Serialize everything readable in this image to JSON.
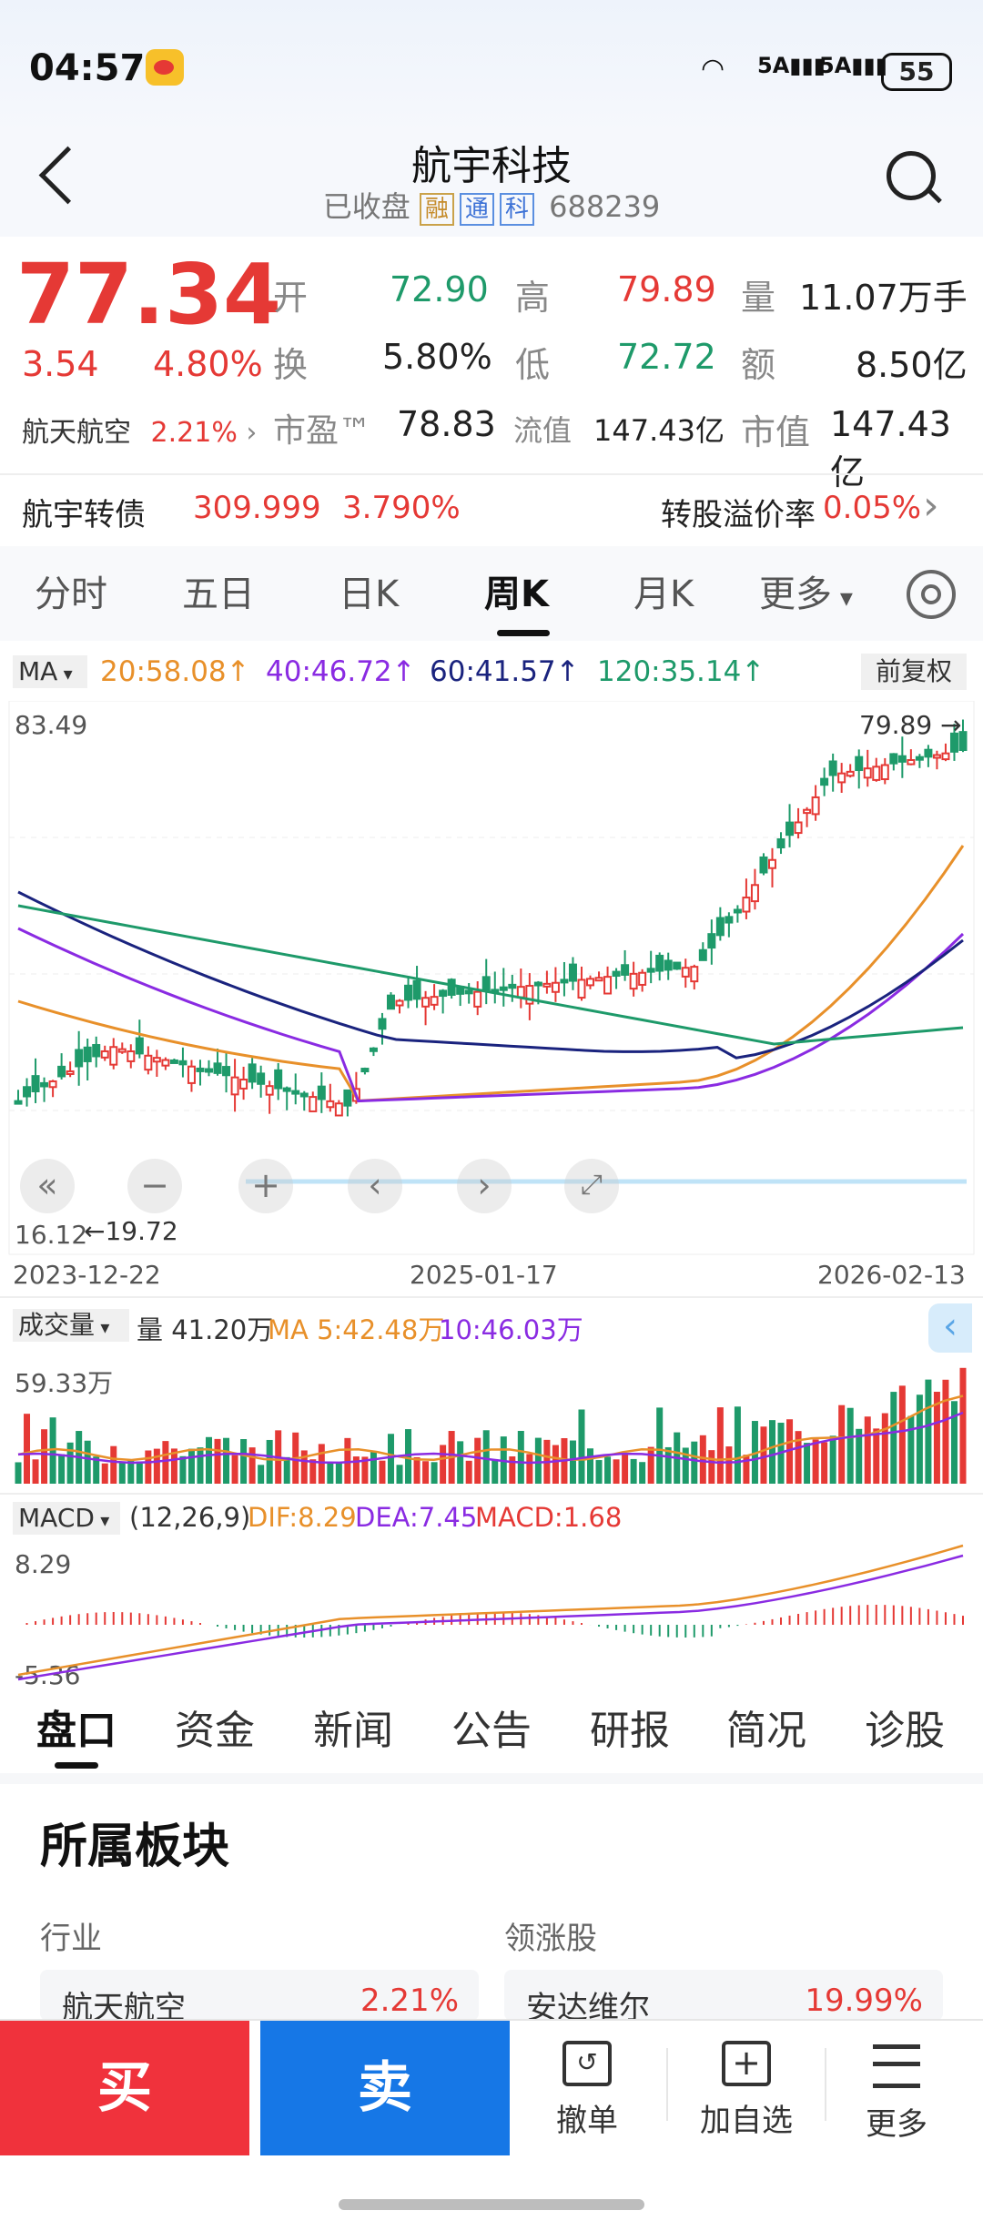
{
  "status": {
    "time": "04:57",
    "battery": "55",
    "net1": "5A",
    "net2": "5A"
  },
  "header": {
    "title": "航宇科技",
    "status": "已收盘",
    "chips": [
      "融",
      "通",
      "科"
    ],
    "code": "688239"
  },
  "quote": {
    "price": "77.34",
    "change": "3.54",
    "change_pct": "4.80%",
    "sector_name": "航天航空",
    "sector_pct": "2.21%",
    "open_label": "开",
    "open": "72.90",
    "high_label": "高",
    "high": "79.89",
    "vol_label": "量",
    "vol": "11.07万手",
    "turn_label": "换",
    "turn": "5.80%",
    "low_label": "低",
    "low": "72.72",
    "amt_label": "额",
    "amt": "8.50亿",
    "pe_label": "市盈™",
    "pe": "78.83",
    "float_label": "流值",
    "float": "147.43亿",
    "mcap_label": "市值",
    "mcap": "147.43亿"
  },
  "bond": {
    "name": "航宇转债",
    "price": "309.999",
    "pct": "3.790%",
    "premium_label": "转股溢价率",
    "premium": "0.05%"
  },
  "tabs": [
    "分时",
    "五日",
    "日K",
    "周K",
    "月K",
    "更多"
  ],
  "ma_bar": {
    "selector": "MA",
    "ma20": "20:58.08↑",
    "ma40": "40:46.72↑",
    "ma60": "60:41.57↑",
    "ma120": "120:35.14↑",
    "adjust": "前复权"
  },
  "kchart": {
    "top_label": "83.49",
    "high_label": "79.89",
    "low_label": "16.12",
    "low_mark": "19.72",
    "date_left": "2023-12-22",
    "date_mid": "2025-01-17",
    "date_right": "2026-02-13"
  },
  "volume": {
    "selector": "成交量",
    "vol_text": "量 41.20万",
    "ma5": "MA 5:42.48万",
    "ma10": "10:46.03万",
    "max_label": "59.33万"
  },
  "macd": {
    "selector": "MACD",
    "params": "(12,26,9)",
    "dif": "DIF:8.29",
    "dea": "DEA:7.45",
    "macd": "MACD:1.68",
    "max_label": "8.29",
    "min_label": "-5.36"
  },
  "bottom_tabs": [
    "盘口",
    "资金",
    "新闻",
    "公告",
    "研报",
    "简况",
    "诊股"
  ],
  "sector_section": {
    "title": "所属板块",
    "industry_label": "行业",
    "leader_label": "领涨股",
    "industry_name": "航天航空",
    "industry_pct": "2.21%",
    "leader_name": "安达维尔",
    "leader_pct": "19.99%"
  },
  "actions": {
    "buy": "买",
    "sell": "卖",
    "cancel": "撤单",
    "watch": "加自选",
    "more": "更多"
  },
  "colors": {
    "up": "#e53935",
    "down": "#1e9a6a",
    "ma20": "#e8902a",
    "ma40": "#8a2be2",
    "ma60": "#1a237e",
    "ma120": "#1e9a6a",
    "buy_bg": "#f0323c",
    "sell_bg": "#1677e6"
  }
}
